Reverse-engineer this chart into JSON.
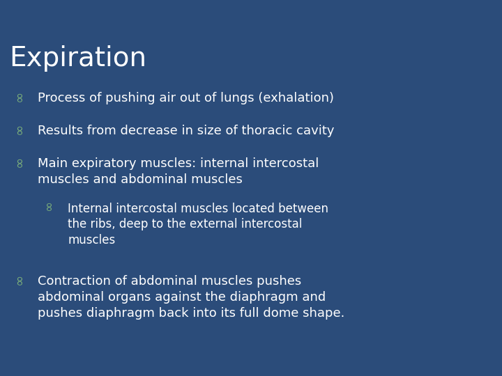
{
  "title": "Expiration",
  "background_color": "#2B4C7A",
  "title_color": "#FFFFFF",
  "text_color": "#FFFFFF",
  "bullet_color": "#7BAF7B",
  "title_fontsize": 28,
  "body_fontsize": 13,
  "sub_fontsize": 12,
  "lines": [
    {
      "level": 0,
      "text": "Process of pushing air out of lungs (exhalation)"
    },
    {
      "level": 0,
      "text": "Results from decrease in size of thoracic cavity"
    },
    {
      "level": 0,
      "text": "Main expiratory muscles: internal intercostal\nmuscles and abdominal muscles"
    },
    {
      "level": 1,
      "text": "Internal intercostal muscles located between\nthe ribs, deep to the external intercostal\nmuscles"
    },
    {
      "level": 0,
      "text": "Contraction of abdominal muscles pushes\nabdominal organs against the diaphragm and\npushes diaphragm back into its full dome shape."
    }
  ],
  "bullet_char": "∞",
  "fig_width": 7.2,
  "fig_height": 5.4,
  "dpi": 100
}
